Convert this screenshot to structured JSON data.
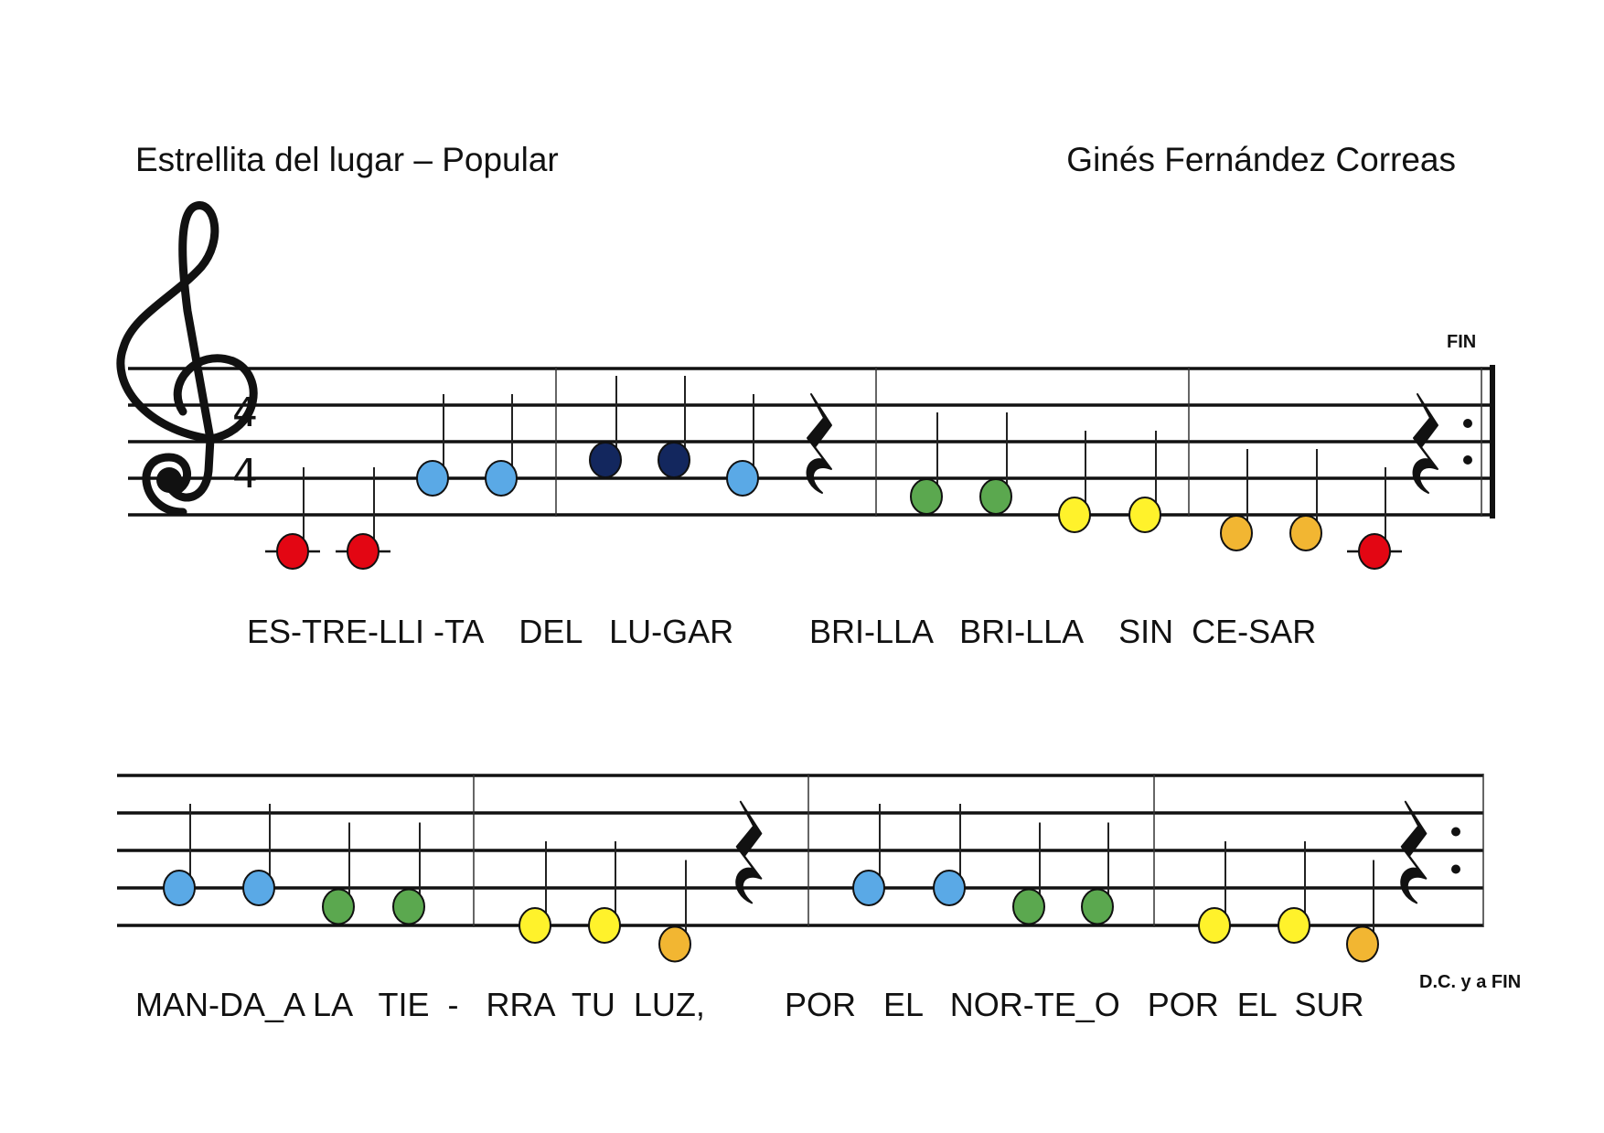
{
  "header": {
    "title": "Estrellita del lugar – Popular",
    "author": "Ginés Fernández Correas"
  },
  "score": {
    "clef": "treble",
    "time_signature": {
      "top": "4",
      "bottom": "4"
    },
    "markings": {
      "fin": "FIN",
      "dc": "D.C. y a FIN"
    },
    "note_colors": {
      "C4": "#e30613",
      "G4": "#5aa9e6",
      "A4": "#13275e",
      "F4": "#5ba84f",
      "E4": "#fff22b",
      "D4": "#f2b632"
    },
    "line1": {
      "measures": [
        [
          "C4",
          "C4",
          "G4",
          "G4"
        ],
        [
          "A4",
          "A4",
          "G4",
          "rest"
        ],
        [
          "F4",
          "F4",
          "E4",
          "E4"
        ],
        [
          "D4",
          "D4",
          "C4",
          "rest"
        ]
      ],
      "end": "repeat-final"
    },
    "line2": {
      "measures": [
        [
          "G4",
          "G4",
          "F4",
          "F4"
        ],
        [
          "E4",
          "E4",
          "D4",
          "rest"
        ],
        [
          "G4",
          "G4",
          "F4",
          "F4"
        ],
        [
          "E4",
          "E4",
          "D4",
          "rest"
        ]
      ],
      "end": "repeat"
    }
  },
  "lyrics": {
    "line1": {
      "part1": "ES-TRE-LLI -TA    DEL   LU-GAR",
      "part2": "BRI-LLA   BRI-LLA    SIN  CE-SAR"
    },
    "line2": {
      "part1": "MAN-DA_A LA   TIE  -   RRA  TU  LUZ,",
      "part2": "POR   EL   NOR-TE_O   POR  EL  SUR"
    }
  }
}
